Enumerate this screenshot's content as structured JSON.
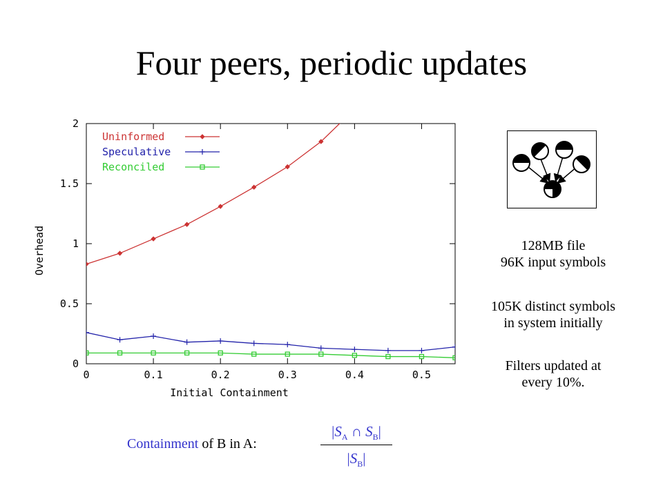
{
  "slide": {
    "title": "Four peers, periodic updates"
  },
  "chart_data": {
    "type": "line",
    "title": "",
    "xlabel": "Initial Containment",
    "ylabel": "Overhead",
    "xlim": [
      0,
      0.55
    ],
    "ylim": [
      0,
      2
    ],
    "xticks": [
      0,
      0.1,
      0.2,
      0.3,
      0.4,
      0.5
    ],
    "yticks": [
      0,
      0.5,
      1,
      1.5,
      2
    ],
    "grid": false,
    "legend_position": "top-left",
    "series": [
      {
        "name": "Uninformed",
        "color": "#cc3333",
        "marker": "diamond",
        "x": [
          0,
          0.05,
          0.1,
          0.15,
          0.2,
          0.25,
          0.3,
          0.35,
          0.4
        ],
        "y": [
          0.83,
          0.92,
          1.04,
          1.16,
          1.31,
          1.47,
          1.64,
          1.85,
          2.12
        ]
      },
      {
        "name": "Speculative",
        "color": "#2222aa",
        "marker": "plus",
        "x": [
          0,
          0.05,
          0.1,
          0.15,
          0.2,
          0.25,
          0.3,
          0.35,
          0.4,
          0.45,
          0.5,
          0.55
        ],
        "y": [
          0.26,
          0.2,
          0.23,
          0.18,
          0.19,
          0.17,
          0.16,
          0.13,
          0.12,
          0.11,
          0.11,
          0.14
        ]
      },
      {
        "name": "Reconciled",
        "color": "#33cc33",
        "marker": "square",
        "x": [
          0,
          0.05,
          0.1,
          0.15,
          0.2,
          0.25,
          0.3,
          0.35,
          0.4,
          0.45,
          0.5,
          0.55
        ],
        "y": [
          0.09,
          0.09,
          0.09,
          0.09,
          0.09,
          0.08,
          0.08,
          0.08,
          0.07,
          0.06,
          0.06,
          0.05
        ]
      }
    ]
  },
  "info": {
    "line1": "128MB file",
    "line2": "96K input symbols",
    "line3": "105K distinct symbols",
    "line4": "in system initially",
    "line5": "Filters updated at",
    "line6": "every 10%."
  },
  "formula": {
    "word": "Containment",
    "rest": " of B in A:",
    "num_open": "|",
    "num_s1": "S",
    "num_sub1": "A",
    "num_op": " ∩ ",
    "num_s2": "S",
    "num_sub2": "B",
    "num_close": "|",
    "den_open": "|",
    "den_s": "S",
    "den_sub": "B",
    "den_close": "|",
    "accent_color": "#3333cc"
  }
}
